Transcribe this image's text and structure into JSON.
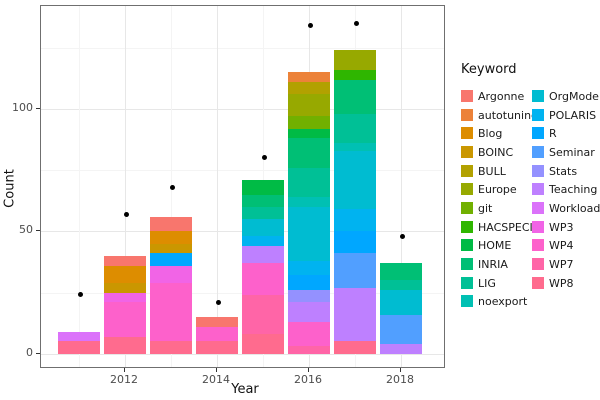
{
  "chart_data": {
    "type": "bar",
    "stacked": true,
    "orientation": "vertical",
    "xlabel": "Year",
    "ylabel": "Count",
    "x_tick_labels": [
      "2012",
      "2014",
      "2016",
      "2018"
    ],
    "y_tick_labels": [
      "0",
      "50",
      "100"
    ],
    "y_tick_values": [
      0,
      50,
      100
    ],
    "y_minor_gridlines": [
      25,
      75,
      125
    ],
    "x_major_years": [
      2012,
      2014,
      2016,
      2018
    ],
    "x_minor_years": [
      2011,
      2013,
      2015,
      2017
    ],
    "ylim": [
      0,
      148
    ],
    "grid": true,
    "legend": {
      "title": "Keyword",
      "position": "right",
      "columns": 2,
      "column_split": 12
    },
    "keywords": [
      {
        "name": "Argonne",
        "color": "#F8766D"
      },
      {
        "name": "autotuning",
        "color": "#EC8239"
      },
      {
        "name": "Blog",
        "color": "#DD8D00"
      },
      {
        "name": "BOINC",
        "color": "#CA9700"
      },
      {
        "name": "BULL",
        "color": "#B2A100"
      },
      {
        "name": "Europe",
        "color": "#97A900"
      },
      {
        "name": "git",
        "color": "#71B000"
      },
      {
        "name": "HACSPECIS",
        "color": "#2FB600"
      },
      {
        "name": "HOME",
        "color": "#00BB45"
      },
      {
        "name": "INRIA",
        "color": "#00BF75"
      },
      {
        "name": "LIG",
        "color": "#00C096"
      },
      {
        "name": "noexport",
        "color": "#00C0B3"
      },
      {
        "name": "OrgMode",
        "color": "#00BCD1"
      },
      {
        "name": "POLARIS",
        "color": "#00B3F0"
      },
      {
        "name": "R",
        "color": "#00A7FF"
      },
      {
        "name": "Seminar",
        "color": "#519FFF"
      },
      {
        "name": "Stats",
        "color": "#9491FF"
      },
      {
        "name": "Teaching",
        "color": "#BE80FF"
      },
      {
        "name": "Workload",
        "color": "#DB72FA"
      },
      {
        "name": "WP3",
        "color": "#F164E6"
      },
      {
        "name": "WP4",
        "color": "#FD61CB"
      },
      {
        "name": "WP7",
        "color": "#FF65A7"
      },
      {
        "name": "WP8",
        "color": "#FF6B8E"
      }
    ],
    "bars": [
      {
        "year": 2011,
        "total": 9,
        "segments_top_to_bottom": [
          {
            "keyword": "Workload",
            "value": 4
          },
          {
            "keyword": "WP8",
            "value": 5
          }
        ]
      },
      {
        "year": 2012,
        "total": 40,
        "segments_top_to_bottom": [
          {
            "keyword": "Argonne",
            "value": 4
          },
          {
            "keyword": "Blog",
            "value": 7
          },
          {
            "keyword": "BOINC",
            "value": 4
          },
          {
            "keyword": "WP3",
            "value": 4
          },
          {
            "keyword": "WP4",
            "value": 14
          },
          {
            "keyword": "WP8",
            "value": 7
          }
        ]
      },
      {
        "year": 2013,
        "total": 56,
        "segments_top_to_bottom": [
          {
            "keyword": "Argonne",
            "value": 6
          },
          {
            "keyword": "Blog",
            "value": 5
          },
          {
            "keyword": "BOINC",
            "value": 4
          },
          {
            "keyword": "R",
            "value": 5
          },
          {
            "keyword": "WP3",
            "value": 7
          },
          {
            "keyword": "WP4",
            "value": 24
          },
          {
            "keyword": "WP8",
            "value": 5
          }
        ]
      },
      {
        "year": 2014,
        "total": 15,
        "segments_top_to_bottom": [
          {
            "keyword": "Argonne",
            "value": 4
          },
          {
            "keyword": "WP4",
            "value": 6
          },
          {
            "keyword": "WP8",
            "value": 5
          }
        ]
      },
      {
        "year": 2015,
        "total": 71,
        "segments_top_to_bottom": [
          {
            "keyword": "HOME",
            "value": 6
          },
          {
            "keyword": "INRIA",
            "value": 5
          },
          {
            "keyword": "LIG",
            "value": 5
          },
          {
            "keyword": "OrgMode",
            "value": 7
          },
          {
            "keyword": "POLARIS",
            "value": 4
          },
          {
            "keyword": "Teaching",
            "value": 7
          },
          {
            "keyword": "WP4",
            "value": 13
          },
          {
            "keyword": "WP7",
            "value": 16
          },
          {
            "keyword": "WP8",
            "value": 8
          }
        ]
      },
      {
        "year": 2016,
        "total": 115,
        "segments_top_to_bottom": [
          {
            "keyword": "autotuning",
            "value": 4
          },
          {
            "keyword": "BULL",
            "value": 5
          },
          {
            "keyword": "Europe",
            "value": 9
          },
          {
            "keyword": "git",
            "value": 5
          },
          {
            "keyword": "HOME",
            "value": 4
          },
          {
            "keyword": "INRIA",
            "value": 12
          },
          {
            "keyword": "LIG",
            "value": 12
          },
          {
            "keyword": "noexport",
            "value": 4
          },
          {
            "keyword": "OrgMode",
            "value": 22
          },
          {
            "keyword": "POLARIS",
            "value": 6
          },
          {
            "keyword": "R",
            "value": 6
          },
          {
            "keyword": "Stats",
            "value": 5
          },
          {
            "keyword": "Teaching",
            "value": 8
          },
          {
            "keyword": "WP4",
            "value": 10
          },
          {
            "keyword": "WP7",
            "value": 3
          }
        ]
      },
      {
        "year": 2017,
        "total": 124,
        "segments_top_to_bottom": [
          {
            "keyword": "Europe",
            "value": 8
          },
          {
            "keyword": "HACSPECIS",
            "value": 4
          },
          {
            "keyword": "INRIA",
            "value": 14
          },
          {
            "keyword": "LIG",
            "value": 12
          },
          {
            "keyword": "noexport",
            "value": 3
          },
          {
            "keyword": "OrgMode",
            "value": 24
          },
          {
            "keyword": "POLARIS",
            "value": 9
          },
          {
            "keyword": "R",
            "value": 9
          },
          {
            "keyword": "Seminar",
            "value": 14
          },
          {
            "keyword": "Teaching",
            "value": 22
          },
          {
            "keyword": "WP8",
            "value": 5
          }
        ]
      },
      {
        "year": 2018,
        "total": 37,
        "segments_top_to_bottom": [
          {
            "keyword": "INRIA",
            "value": 7
          },
          {
            "keyword": "LIG",
            "value": 4
          },
          {
            "keyword": "OrgMode",
            "value": 10
          },
          {
            "keyword": "Seminar",
            "value": 12
          },
          {
            "keyword": "Teaching",
            "value": 4
          }
        ]
      }
    ],
    "points": [
      {
        "year": 2011,
        "value": 24
      },
      {
        "year": 2012,
        "value": 57
      },
      {
        "year": 2013,
        "value": 68
      },
      {
        "year": 2014,
        "value": 21
      },
      {
        "year": 2015,
        "value": 80
      },
      {
        "year": 2016,
        "value": 134
      },
      {
        "year": 2017,
        "value": 135
      },
      {
        "year": 2018,
        "value": 48
      }
    ]
  }
}
